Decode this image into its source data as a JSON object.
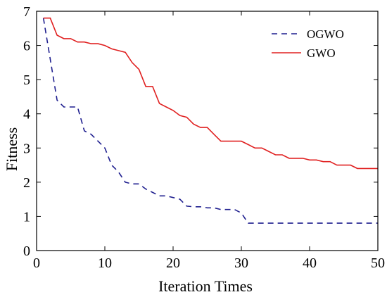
{
  "chart_data": {
    "type": "line",
    "xlabel": "Iteration Times",
    "ylabel": "Fitness",
    "xlim": [
      0,
      50
    ],
    "ylim": [
      0,
      7
    ],
    "xticks": [
      0,
      10,
      20,
      30,
      40,
      50
    ],
    "yticks": [
      0,
      1,
      2,
      3,
      4,
      5,
      6,
      7
    ],
    "grid": false,
    "legend_position": "top-right",
    "series": [
      {
        "name": "OGWO",
        "color": "#1f1f8f",
        "dash": "dashed",
        "points": [
          [
            1,
            6.8
          ],
          [
            2,
            5.6
          ],
          [
            3,
            4.4
          ],
          [
            4,
            4.2
          ],
          [
            5,
            4.2
          ],
          [
            6,
            4.2
          ],
          [
            7,
            3.5
          ],
          [
            8,
            3.4
          ],
          [
            9,
            3.2
          ],
          [
            10,
            3.0
          ],
          [
            11,
            2.5
          ],
          [
            12,
            2.3
          ],
          [
            13,
            2.0
          ],
          [
            14,
            1.95
          ],
          [
            15,
            1.95
          ],
          [
            16,
            1.8
          ],
          [
            17,
            1.7
          ],
          [
            18,
            1.6
          ],
          [
            19,
            1.6
          ],
          [
            20,
            1.55
          ],
          [
            21,
            1.5
          ],
          [
            22,
            1.3
          ],
          [
            23,
            1.28
          ],
          [
            24,
            1.28
          ],
          [
            25,
            1.25
          ],
          [
            26,
            1.25
          ],
          [
            27,
            1.2
          ],
          [
            28,
            1.2
          ],
          [
            29,
            1.2
          ],
          [
            30,
            1.1
          ],
          [
            31,
            0.8
          ],
          [
            32,
            0.8
          ],
          [
            35,
            0.8
          ],
          [
            40,
            0.8
          ],
          [
            45,
            0.8
          ],
          [
            50,
            0.8
          ]
        ]
      },
      {
        "name": "GWO",
        "color": "#e02020",
        "dash": "solid",
        "points": [
          [
            1,
            6.8
          ],
          [
            2,
            6.8
          ],
          [
            3,
            6.3
          ],
          [
            4,
            6.2
          ],
          [
            5,
            6.2
          ],
          [
            6,
            6.1
          ],
          [
            7,
            6.1
          ],
          [
            8,
            6.05
          ],
          [
            9,
            6.05
          ],
          [
            10,
            6.0
          ],
          [
            11,
            5.9
          ],
          [
            12,
            5.85
          ],
          [
            13,
            5.8
          ],
          [
            14,
            5.5
          ],
          [
            15,
            5.3
          ],
          [
            16,
            4.8
          ],
          [
            17,
            4.8
          ],
          [
            18,
            4.3
          ],
          [
            19,
            4.2
          ],
          [
            20,
            4.1
          ],
          [
            21,
            3.95
          ],
          [
            22,
            3.9
          ],
          [
            23,
            3.7
          ],
          [
            24,
            3.6
          ],
          [
            25,
            3.6
          ],
          [
            26,
            3.4
          ],
          [
            27,
            3.2
          ],
          [
            28,
            3.2
          ],
          [
            29,
            3.2
          ],
          [
            30,
            3.2
          ],
          [
            31,
            3.1
          ],
          [
            32,
            3.0
          ],
          [
            33,
            3.0
          ],
          [
            34,
            2.9
          ],
          [
            35,
            2.8
          ],
          [
            36,
            2.8
          ],
          [
            37,
            2.7
          ],
          [
            38,
            2.7
          ],
          [
            39,
            2.7
          ],
          [
            40,
            2.65
          ],
          [
            41,
            2.65
          ],
          [
            42,
            2.6
          ],
          [
            43,
            2.6
          ],
          [
            44,
            2.5
          ],
          [
            45,
            2.5
          ],
          [
            46,
            2.5
          ],
          [
            47,
            2.4
          ],
          [
            48,
            2.4
          ],
          [
            49,
            2.4
          ],
          [
            50,
            2.4
          ]
        ]
      }
    ]
  }
}
